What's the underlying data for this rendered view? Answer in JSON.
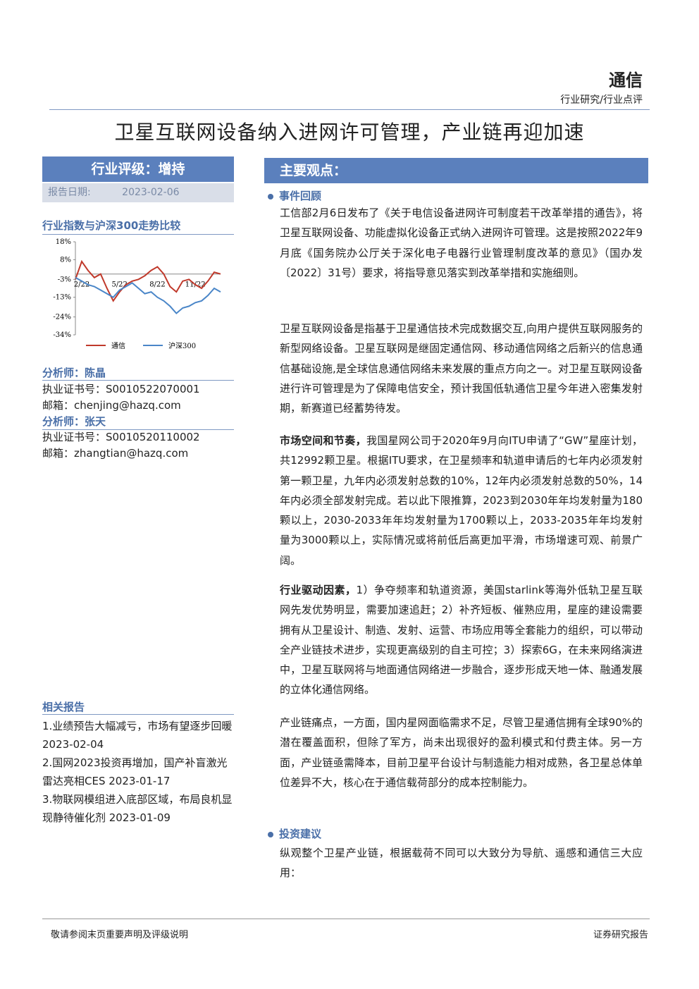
{
  "header": {
    "sector": "通信",
    "category": "行业研究/行业点评"
  },
  "title": "卫星互联网设备纳入进网许可管理，产业链再迎加速",
  "rating": {
    "label": "行业评级：增持",
    "date_label": "报告日期:",
    "date": "2023-02-06"
  },
  "main_heading": "主要观点：",
  "chart_data": {
    "type": "line",
    "title": "行业指数与沪深300走势比较",
    "categories": [
      null,
      "2/22",
      null,
      null,
      null,
      null,
      null,
      "5/22",
      null,
      null,
      null,
      null,
      null,
      "8/22",
      null,
      null,
      null,
      null,
      null,
      "11/22",
      null,
      null,
      null,
      null
    ],
    "series": [
      {
        "name": "通信",
        "color": "#c0392b",
        "values": [
          -3,
          7,
          2,
          -2,
          0,
          -8,
          -15,
          -10,
          -6,
          -4,
          -3,
          -1,
          2,
          4,
          0,
          -7,
          -10,
          -4,
          -3,
          -6,
          -8,
          -4,
          1,
          0
        ]
      },
      {
        "name": "沪深300",
        "color": "#4a86c8",
        "values": [
          -2,
          -4,
          -6,
          -7,
          -9,
          -11,
          -13,
          -9,
          -7,
          -5,
          -8,
          -11,
          -10,
          -13,
          -15,
          -18,
          -22,
          -19,
          -18,
          -16,
          -15,
          -12,
          -8,
          -10
        ]
      }
    ],
    "ylim": [
      -34,
      18
    ],
    "yticks": [
      {
        "value": 18,
        "label": "18%"
      },
      {
        "value": 8,
        "label": "8%"
      },
      {
        "value": -3,
        "label": "-3%"
      },
      {
        "value": -13,
        "label": "-13%"
      },
      {
        "value": -24,
        "label": "-24%"
      },
      {
        "value": -34,
        "label": "-34%"
      }
    ],
    "grid": false
  },
  "analysts": [
    {
      "name": "分析师：陈晶",
      "license": "执业证书号：S0010522070001",
      "email": "邮箱：chenjing@hazq.com"
    },
    {
      "name": "分析师：张天",
      "license": "执业证书号：S0010520110002",
      "email": "邮箱：zhangtian@hazq.com"
    }
  ],
  "related": {
    "heading": "相关报告",
    "items": [
      "1.业绩预告大幅减亏，市场有望逐步回暖 2023-02-04",
      "2.国网2023投资再增加，国产补盲激光雷达亮相CES 2023-01-17",
      "3.物联网模组进入底部区域，布局良机显现静待催化剂 2023-01-09"
    ]
  },
  "sections": [
    {
      "heading": "事件回顾",
      "paragraphs": [
        {
          "text": "工信部2月6日发布了《关于电信设备进网许可制度若干改革举措的通告》，将卫星互联网设备、功能虚拟化设备正式纳入进网许可管理。这是按照2022年9月底《国务院办公厅关于深化电子电器行业管理制度改革的意见》（国办发〔2022〕31号）要求，将指导意见落实到改革举措和实施细则。"
        },
        {
          "text": "卫星互联网设备是指基于卫星通信技术完成数据交互,向用户提供互联网服务的新型网络设备。卫星互联网是继固定通信网、移动通信网络之后新兴的信息通信基础设施,是全球信息通信网络未来发展的重点方向之一。对卫星互联网设备进行许可管理是为了保障电信安全，预计我国低轨通信卫星今年进入密集发射期，新赛道已经蓄势待发。"
        },
        {
          "lead": "市场空间和节奏，",
          "text": "我国星网公司于2020年9月向ITU申请了“GW”星座计划，共12992颗卫星。根据ITU要求，在卫星频率和轨道申请后的七年内必须发射第一颗卫星，九年内必须发射总数的10%，12年内必须发射总数的50%，14年内必须全部发射完成。若以此下限推算，2023到2030年年均发射量为180颗以上，2030-2033年年均发射量为1700颗以上，2033-2035年年均发射量为3000颗以上，实际情况或将前低后高更加平滑，市场增速可观、前景广阔。"
        },
        {
          "lead": "行业驱动因素，",
          "text": "1）争夺频率和轨道资源，美国starlink等海外低轨卫星互联网先发优势明显，需要加速追赶；2）补齐短板、催熟应用，星座的建设需要拥有从卫星设计、制造、发射、运营、市场应用等全套能力的组织，可以带动全产业链技术进步，实现更高级别的自主可控；3）探索6G，在未来网络演进中，卫星互联网将与地面通信网络进一步融合，逐步形成天地一体、融通发展的立体化通信网络。"
        },
        {
          "text": "产业链痛点，一方面，国内星网面临需求不足，尽管卫星通信拥有全球90%的潜在覆盖面积，但除了军方，尚未出现很好的盈利模式和付费主体。另一方面，产业链亟需降本，目前卫星平台设计与制造能力相对成熟，各卫星总体单位差异不大，核心在于通信载荷部分的成本控制能力。"
        }
      ]
    },
    {
      "heading": "投资建议",
      "paragraphs": [
        {
          "text": "纵观整个卫星产业链，根据载荷不同可以大致分为导航、遥感和通信三大应用："
        }
      ]
    }
  ],
  "footer": {
    "left": "敬请参阅末页重要声明及评级说明",
    "right": "证券研究报告"
  }
}
